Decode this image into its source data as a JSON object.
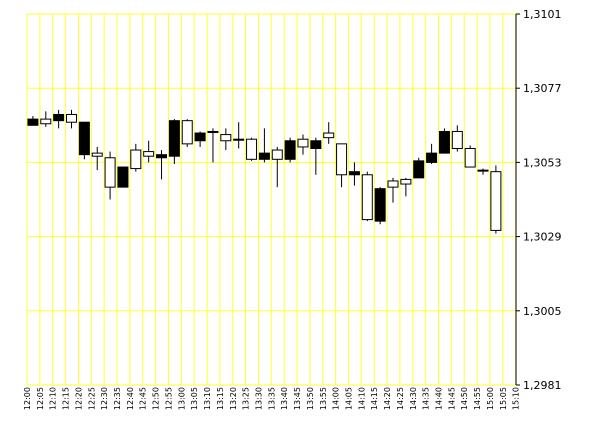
{
  "chart_data": {
    "type": "candlestick",
    "grid": true,
    "colors": {
      "grid": "#ffff33",
      "up_fill": "#ffffff",
      "down_fill": "#000000",
      "outline": "#000000",
      "background": "#ffffff"
    },
    "y_axis": {
      "position": "right",
      "range": [
        1.2981,
        1.3101
      ],
      "ticks": [
        "1,3101",
        "1,3077",
        "1,3053",
        "1,3029",
        "1,3005",
        "1,2981"
      ]
    },
    "x_axis": {
      "ticks": [
        "12:00",
        "12:05",
        "12:10",
        "12:15",
        "12:20",
        "12:25",
        "12:30",
        "12:35",
        "12:40",
        "12:45",
        "12:50",
        "12:55",
        "13:00",
        "13:05",
        "13:10",
        "13:15",
        "13:20",
        "13:25",
        "13:30",
        "13:35",
        "13:40",
        "13:45",
        "13:50",
        "13:55",
        "14:00",
        "14:05",
        "14:10",
        "14:15",
        "14:20",
        "14:25",
        "14:30",
        "14:35",
        "14:40",
        "14:45",
        "14:50",
        "14:55",
        "15:00",
        "15:05",
        "15:10"
      ]
    },
    "candles": [
      {
        "time": "12:00",
        "open": 1.3067,
        "high": 1.3068,
        "low": 1.3065,
        "close": 1.3065
      },
      {
        "time": "12:05",
        "open": 1.30655,
        "high": 1.30695,
        "low": 1.30645,
        "close": 1.3067
      },
      {
        "time": "12:10",
        "open": 1.30685,
        "high": 1.307,
        "low": 1.3064,
        "close": 1.30665
      },
      {
        "time": "12:15",
        "open": 1.3066,
        "high": 1.307,
        "low": 1.3064,
        "close": 1.30685
      },
      {
        "time": "12:20",
        "open": 1.3066,
        "high": 1.3066,
        "low": 1.3054,
        "close": 1.30555
      },
      {
        "time": "12:25",
        "open": 1.3055,
        "high": 1.3058,
        "low": 1.30505,
        "close": 1.3056
      },
      {
        "time": "12:30",
        "open": 1.3045,
        "high": 1.30565,
        "low": 1.3041,
        "close": 1.30545
      },
      {
        "time": "12:35",
        "open": 1.30515,
        "high": 1.30515,
        "low": 1.3045,
        "close": 1.3045
      },
      {
        "time": "12:40",
        "open": 1.3051,
        "high": 1.3059,
        "low": 1.305,
        "close": 1.3057
      },
      {
        "time": "12:45",
        "open": 1.3055,
        "high": 1.306,
        "low": 1.3053,
        "close": 1.30565
      },
      {
        "time": "12:50",
        "open": 1.30555,
        "high": 1.3057,
        "low": 1.30475,
        "close": 1.30545
      },
      {
        "time": "12:55",
        "open": 1.30665,
        "high": 1.3067,
        "low": 1.30525,
        "close": 1.3055
      },
      {
        "time": "13:00",
        "open": 1.3059,
        "high": 1.3067,
        "low": 1.3058,
        "close": 1.30665
      },
      {
        "time": "13:05",
        "open": 1.30625,
        "high": 1.3063,
        "low": 1.3058,
        "close": 1.306
      },
      {
        "time": "13:10",
        "open": 1.3063,
        "high": 1.3064,
        "low": 1.3053,
        "close": 1.3063
      },
      {
        "time": "13:15",
        "open": 1.306,
        "high": 1.3064,
        "low": 1.3057,
        "close": 1.3062
      },
      {
        "time": "13:20",
        "open": 1.30605,
        "high": 1.3066,
        "low": 1.30575,
        "close": 1.30605
      },
      {
        "time": "13:25",
        "open": 1.3054,
        "high": 1.3061,
        "low": 1.30535,
        "close": 1.30605
      },
      {
        "time": "13:30",
        "open": 1.3056,
        "high": 1.3064,
        "low": 1.3053,
        "close": 1.3054
      },
      {
        "time": "13:35",
        "open": 1.3054,
        "high": 1.3058,
        "low": 1.3045,
        "close": 1.3057
      },
      {
        "time": "13:40",
        "open": 1.306,
        "high": 1.3061,
        "low": 1.3053,
        "close": 1.3054
      },
      {
        "time": "13:45",
        "open": 1.3058,
        "high": 1.3062,
        "low": 1.30555,
        "close": 1.30605
      },
      {
        "time": "13:50",
        "open": 1.306,
        "high": 1.3061,
        "low": 1.3049,
        "close": 1.30575
      },
      {
        "time": "13:55",
        "open": 1.3061,
        "high": 1.3066,
        "low": 1.3059,
        "close": 1.30625
      },
      {
        "time": "14:00",
        "open": 1.3049,
        "high": 1.30585,
        "low": 1.3045,
        "close": 1.3059
      },
      {
        "time": "14:05",
        "open": 1.305,
        "high": 1.3053,
        "low": 1.30455,
        "close": 1.3049
      },
      {
        "time": "14:10",
        "open": 1.30345,
        "high": 1.305,
        "low": 1.3034,
        "close": 1.3049
      },
      {
        "time": "14:15",
        "open": 1.30445,
        "high": 1.3045,
        "low": 1.3033,
        "close": 1.3034
      },
      {
        "time": "14:20",
        "open": 1.3045,
        "high": 1.3048,
        "low": 1.304,
        "close": 1.3047
      },
      {
        "time": "14:25",
        "open": 1.3046,
        "high": 1.3048,
        "low": 1.3042,
        "close": 1.30475
      },
      {
        "time": "14:30",
        "open": 1.30535,
        "high": 1.30545,
        "low": 1.3048,
        "close": 1.3048
      },
      {
        "time": "14:35",
        "open": 1.3056,
        "high": 1.3059,
        "low": 1.30525,
        "close": 1.3053
      },
      {
        "time": "14:40",
        "open": 1.3063,
        "high": 1.3064,
        "low": 1.3056,
        "close": 1.3056
      },
      {
        "time": "14:45",
        "open": 1.30575,
        "high": 1.3065,
        "low": 1.30565,
        "close": 1.3063
      },
      {
        "time": "14:50",
        "open": 1.30515,
        "high": 1.30585,
        "low": 1.30515,
        "close": 1.30575
      },
      {
        "time": "14:55",
        "open": 1.30505,
        "high": 1.3051,
        "low": 1.3049,
        "close": 1.30505
      },
      {
        "time": "15:00",
        "open": 1.3031,
        "high": 1.3052,
        "low": 1.303,
        "close": 1.305
      }
    ]
  }
}
